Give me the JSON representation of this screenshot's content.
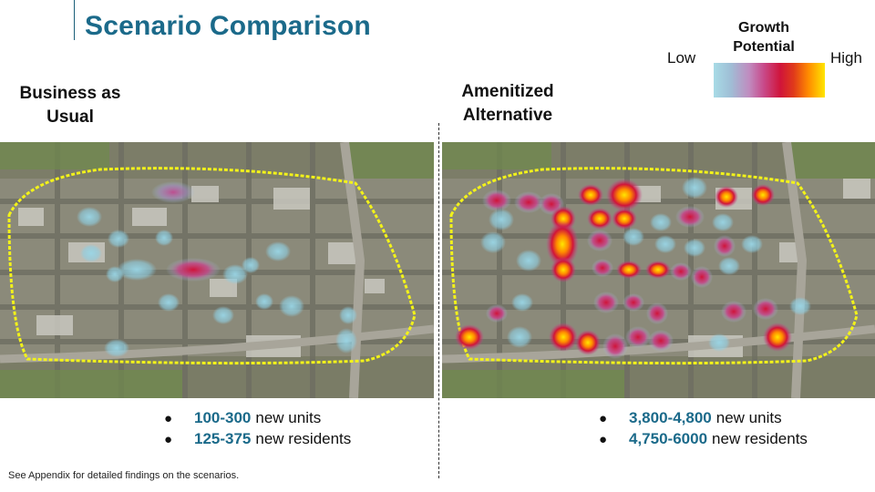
{
  "title": "Scenario Comparison",
  "legend": {
    "title_line1": "Growth",
    "title_line2": "Potential",
    "low": "Low",
    "high": "High"
  },
  "scenarios": [
    {
      "label_line1": "Business as",
      "label_line2": "Usual",
      "bullets": [
        {
          "value": "100-300",
          "text": "new units"
        },
        {
          "value": "125-375",
          "text": "new residents"
        }
      ]
    },
    {
      "label_line1": "Amenitized",
      "label_line2": "Alternative",
      "bullets": [
        {
          "value": "3,800-4,800",
          "text": "new units"
        },
        {
          "value": "4,750-6000",
          "text": "new residents"
        }
      ]
    }
  ],
  "bullet_glyph": "●",
  "footnote": "See Appendix for detailed findings on the scenarios.",
  "colors": {
    "title": "#1b6a8a",
    "highlight_value": "#1b6a8a",
    "boundary": "#f2f21a",
    "heat_low": "#a8dbe6",
    "heat_mid": "#d0143a",
    "heat_high": "#ffe600"
  }
}
